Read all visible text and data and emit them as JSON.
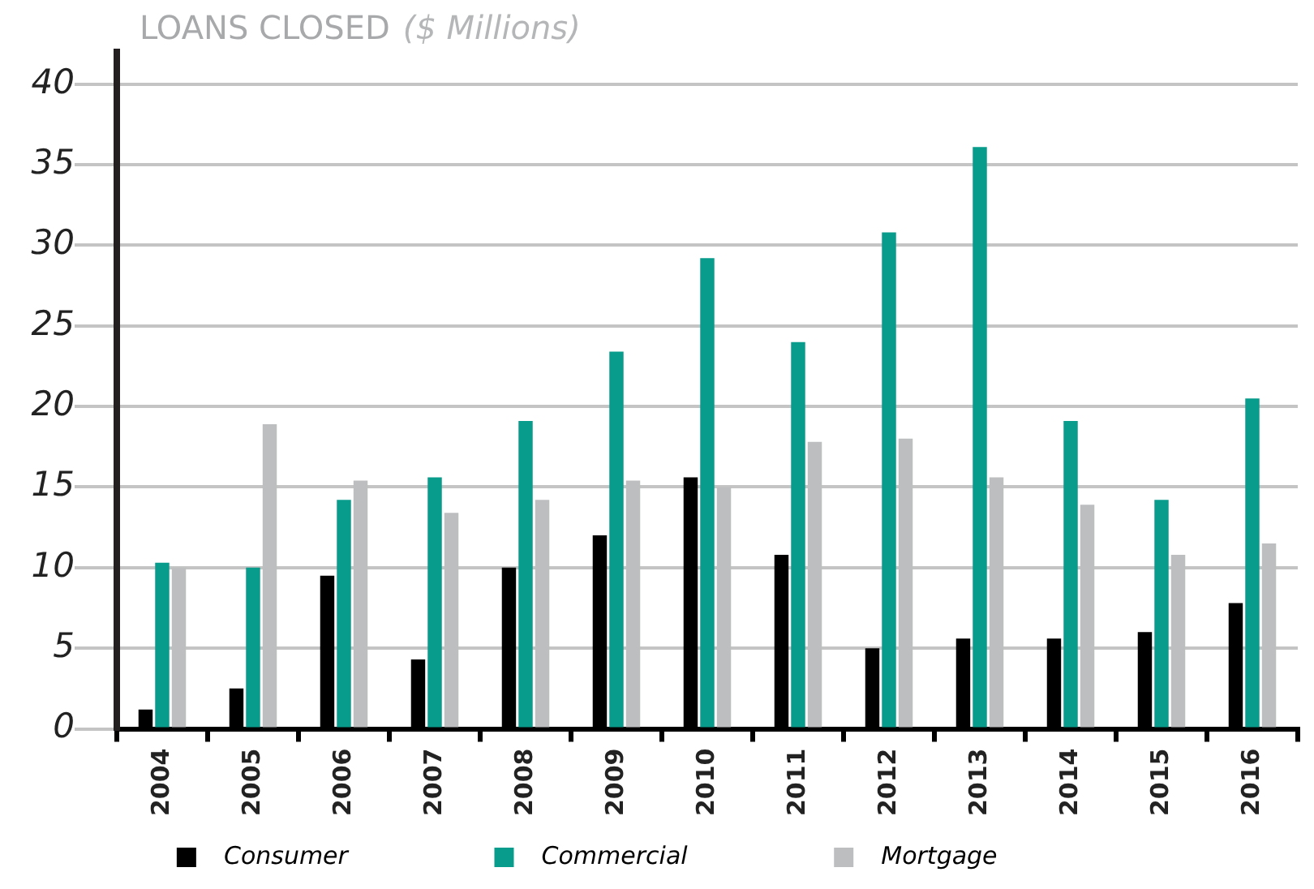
{
  "chart_data": {
    "type": "bar",
    "title": "LOANS CLOSED",
    "subtitle": "($ Millions)",
    "categories": [
      "2004",
      "2005",
      "2006",
      "2007",
      "2008",
      "2009",
      "2010",
      "2011",
      "2012",
      "2013",
      "2014",
      "2015",
      "2016"
    ],
    "series": [
      {
        "name": "Consumer",
        "color": "#000000",
        "values": [
          1.2,
          2.5,
          9.5,
          4.3,
          10.0,
          12.0,
          15.6,
          10.8,
          5.0,
          5.6,
          5.6,
          6.0,
          7.8
        ]
      },
      {
        "name": "Commercial",
        "color": "#089c8c",
        "values": [
          10.3,
          10.0,
          14.2,
          15.6,
          19.1,
          23.4,
          29.2,
          24.0,
          30.8,
          36.1,
          19.1,
          14.2,
          20.5
        ]
      },
      {
        "name": "Mortgage",
        "color": "#bdbec0",
        "values": [
          10.0,
          18.9,
          15.4,
          13.4,
          14.2,
          15.4,
          15.0,
          17.8,
          18.0,
          15.6,
          13.9,
          10.8,
          11.5
        ]
      }
    ],
    "ylim": [
      0,
      42
    ],
    "yticks": [
      0,
      5,
      10,
      15,
      20,
      25,
      30,
      35,
      40
    ],
    "grid": "y",
    "legend": "bottom"
  }
}
